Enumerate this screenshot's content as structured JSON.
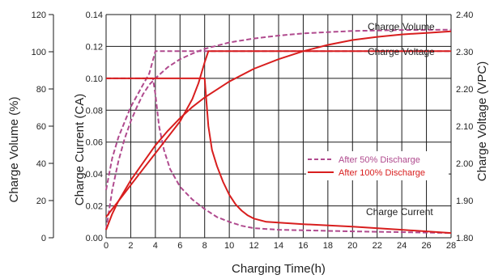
{
  "chart_data": {
    "type": "line",
    "xlabel": "Charging Time(h)",
    "x_ticks": [
      0,
      2,
      4,
      6,
      8,
      10,
      12,
      14,
      16,
      18,
      20,
      22,
      24,
      26,
      28
    ],
    "xlim": [
      0,
      28
    ],
    "axes": {
      "charge_volume": {
        "label": "Charge Volume (%)",
        "ticks": [
          "0",
          "20",
          "40",
          "60",
          "80",
          "100",
          "120"
        ],
        "range": [
          0,
          120
        ]
      },
      "charge_current": {
        "label": "Charge Current (CA)",
        "ticks": [
          "0.00",
          "0.02",
          "0.04",
          "0.06",
          "0.08",
          "0.10",
          "0.12",
          "0.14"
        ],
        "range": [
          0,
          0.14
        ]
      },
      "charge_voltage": {
        "label": "Charge Voltage (VPC)",
        "ticks": [
          "1.80",
          "1.90",
          "2.00",
          "2.10",
          "2.20",
          "2.30",
          "2.40"
        ],
        "range": [
          1.8,
          2.4
        ]
      }
    },
    "annotations": [
      "Charge Volume",
      "Charge Voltage",
      "Charge Current"
    ],
    "legend": {
      "placement": "center-right",
      "entries": [
        {
          "label": "After 50% Discharge",
          "style": "dashed",
          "color": "#b04a8e"
        },
        {
          "label": "After 100% Discharge",
          "style": "solid",
          "color": "#d81e1e"
        }
      ]
    },
    "grid": true,
    "series": [
      {
        "legend": "After 50% Discharge",
        "quantity": "Charge Volume",
        "axis": "charge_current",
        "style": "dashed",
        "color": "#b04a8e",
        "points": [
          [
            0,
            0.005
          ],
          [
            0.5,
            0.03
          ],
          [
            1,
            0.048
          ],
          [
            1.5,
            0.062
          ],
          [
            2,
            0.073
          ],
          [
            2.5,
            0.082
          ],
          [
            3,
            0.09
          ],
          [
            3.5,
            0.096
          ],
          [
            4,
            0.1
          ],
          [
            5,
            0.107
          ],
          [
            6,
            0.112
          ],
          [
            7,
            0.1155
          ],
          [
            8,
            0.1185
          ],
          [
            10,
            0.1225
          ],
          [
            12,
            0.125
          ],
          [
            14,
            0.1268
          ],
          [
            16,
            0.1282
          ],
          [
            18,
            0.129
          ],
          [
            20,
            0.1297
          ],
          [
            24,
            0.1303
          ],
          [
            28,
            0.1305
          ]
        ]
      },
      {
        "legend": "After 50% Discharge",
        "quantity": "Charge Voltage",
        "axis": "charge_current",
        "style": "dashed",
        "color": "#b04a8e",
        "points": [
          [
            0,
            0.03
          ],
          [
            0.5,
            0.05
          ],
          [
            1,
            0.063
          ],
          [
            2,
            0.082
          ],
          [
            3,
            0.096
          ],
          [
            3.5,
            0.103
          ],
          [
            4,
            0.117
          ],
          [
            8,
            0.117
          ],
          [
            28,
            0.117
          ]
        ]
      },
      {
        "legend": "After 50% Discharge",
        "quantity": "Charge Current",
        "axis": "charge_current",
        "style": "dashed",
        "color": "#b04a8e",
        "points": [
          [
            0,
            0.1
          ],
          [
            3.8,
            0.1
          ],
          [
            4,
            0.09
          ],
          [
            4.3,
            0.07
          ],
          [
            4.7,
            0.055
          ],
          [
            5.2,
            0.043
          ],
          [
            6,
            0.032
          ],
          [
            7,
            0.024
          ],
          [
            8,
            0.018
          ],
          [
            9,
            0.013
          ],
          [
            10,
            0.01
          ],
          [
            11,
            0.0075
          ],
          [
            12,
            0.006
          ],
          [
            14,
            0.005
          ],
          [
            17,
            0.0045
          ],
          [
            20,
            0.004
          ],
          [
            24,
            0.0035
          ],
          [
            28,
            0.003
          ]
        ]
      },
      {
        "legend": "After 100% Discharge",
        "quantity": "Charge Volume",
        "axis": "charge_current",
        "style": "solid",
        "color": "#d81e1e",
        "points": [
          [
            0,
            0.005
          ],
          [
            0.5,
            0.015
          ],
          [
            1,
            0.023
          ],
          [
            2,
            0.036
          ],
          [
            3,
            0.047
          ],
          [
            4,
            0.058
          ],
          [
            5,
            0.067
          ],
          [
            6,
            0.075
          ],
          [
            7,
            0.082
          ],
          [
            8,
            0.088
          ],
          [
            9,
            0.093
          ],
          [
            10,
            0.098
          ],
          [
            12,
            0.106
          ],
          [
            14,
            0.112
          ],
          [
            16,
            0.117
          ],
          [
            18,
            0.121
          ],
          [
            20,
            0.124
          ],
          [
            22,
            0.126
          ],
          [
            24,
            0.1275
          ],
          [
            26,
            0.1285
          ],
          [
            28,
            0.1295
          ]
        ]
      },
      {
        "legend": "After 100% Discharge",
        "quantity": "Charge Voltage",
        "axis": "charge_current",
        "style": "solid",
        "color": "#d81e1e",
        "points": [
          [
            0,
            0.013
          ],
          [
            0.5,
            0.018
          ],
          [
            1,
            0.023
          ],
          [
            2,
            0.033
          ],
          [
            3,
            0.043
          ],
          [
            4,
            0.053
          ],
          [
            5,
            0.063
          ],
          [
            6,
            0.073
          ],
          [
            6.5,
            0.08
          ],
          [
            7,
            0.087
          ],
          [
            7.5,
            0.097
          ],
          [
            8,
            0.11
          ],
          [
            8.3,
            0.117
          ],
          [
            28,
            0.117
          ]
        ]
      },
      {
        "legend": "After 100% Discharge",
        "quantity": "Charge Current",
        "axis": "charge_current",
        "style": "solid",
        "color": "#d81e1e",
        "points": [
          [
            0,
            0.1
          ],
          [
            8,
            0.1
          ],
          [
            8.1,
            0.09
          ],
          [
            8.3,
            0.07
          ],
          [
            8.6,
            0.055
          ],
          [
            9,
            0.045
          ],
          [
            9.5,
            0.035
          ],
          [
            10,
            0.027
          ],
          [
            10.5,
            0.021
          ],
          [
            11,
            0.017
          ],
          [
            11.5,
            0.014
          ],
          [
            12,
            0.012
          ],
          [
            12.5,
            0.011
          ],
          [
            13,
            0.01
          ],
          [
            16,
            0.0085
          ],
          [
            20,
            0.007
          ],
          [
            24,
            0.005
          ],
          [
            28,
            0.003
          ]
        ]
      }
    ]
  }
}
